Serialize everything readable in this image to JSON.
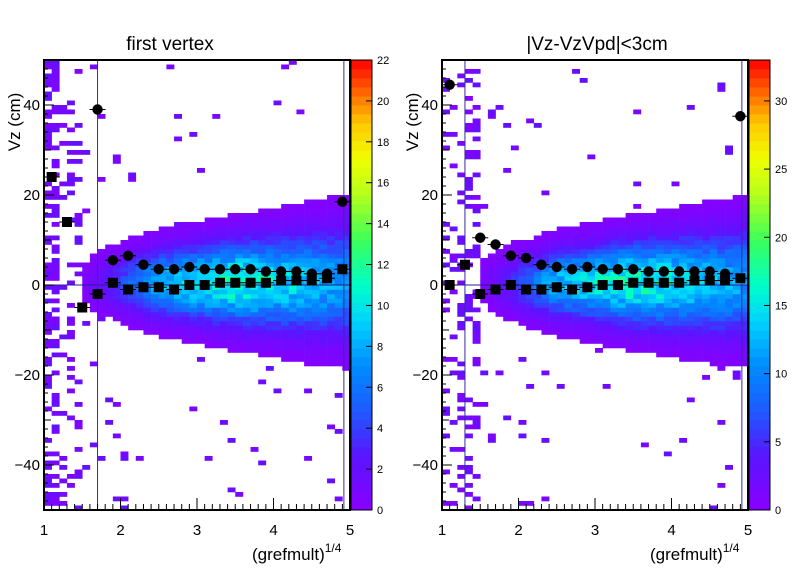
{
  "chart_data": [
    {
      "type": "heatmap",
      "title": "first vertex",
      "xlabel": "(grefmult)",
      "xlabel_sup": "1/4",
      "ylabel": "Vz (cm)",
      "xlim": [
        1,
        5
      ],
      "ylim": [
        -50,
        50
      ],
      "x_ticks": [
        "1",
        "2",
        "3",
        "4",
        "5"
      ],
      "y_ticks": [
        "−40",
        "−20",
        "0",
        "20",
        "40"
      ],
      "colorbar": {
        "min": 0,
        "max": 22,
        "ticks": [
          "0",
          "2",
          "4",
          "6",
          "8",
          "10",
          "12",
          "14",
          "16",
          "18",
          "20",
          "22"
        ]
      },
      "series": [
        {
          "name": "",
          "marker": "circle",
          "points": [
            [
              1.7,
              39
            ],
            [
              1.9,
              5.5
            ],
            [
              2.1,
              6.5
            ],
            [
              2.3,
              4.5
            ],
            [
              2.5,
              3.5
            ],
            [
              2.7,
              3.5
            ],
            [
              2.9,
              4
            ],
            [
              3.1,
              3.5
            ],
            [
              3.3,
              3.5
            ],
            [
              3.5,
              3.5
            ],
            [
              3.7,
              3.5
            ],
            [
              3.9,
              3
            ],
            [
              4.1,
              3
            ],
            [
              4.3,
              3
            ],
            [
              4.5,
              2.5
            ],
            [
              4.7,
              2.5
            ],
            [
              4.9,
              18.5
            ]
          ]
        },
        {
          "name": "",
          "marker": "square",
          "points": [
            [
              1.1,
              24
            ],
            [
              1.3,
              14
            ],
            [
              1.5,
              -5
            ],
            [
              1.7,
              -2
            ],
            [
              1.9,
              0.5
            ],
            [
              2.1,
              -1
            ],
            [
              2.3,
              -0.5
            ],
            [
              2.5,
              -0.5
            ],
            [
              2.7,
              -1
            ],
            [
              2.9,
              0
            ],
            [
              3.1,
              0
            ],
            [
              3.3,
              0.5
            ],
            [
              3.5,
              0.5
            ],
            [
              3.7,
              0.5
            ],
            [
              3.9,
              0.5
            ],
            [
              4.1,
              1
            ],
            [
              4.3,
              1
            ],
            [
              4.5,
              1
            ],
            [
              4.7,
              1.5
            ],
            [
              4.9,
              3.5
            ]
          ]
        }
      ],
      "vertical_lines_x": [
        1.7,
        4.92
      ]
    },
    {
      "type": "heatmap",
      "title": "|Vz-VzVpd|<3cm",
      "xlabel": "(grefmult)",
      "xlabel_sup": "1/4",
      "ylabel": "Vz (cm)",
      "xlim": [
        1,
        5
      ],
      "ylim": [
        -50,
        50
      ],
      "x_ticks": [
        "1",
        "2",
        "3",
        "4",
        "5"
      ],
      "y_ticks": [
        "−40",
        "−20",
        "0",
        "20",
        "40"
      ],
      "colorbar": {
        "min": 0,
        "max": 33,
        "ticks": [
          "0",
          "5",
          "10",
          "15",
          "20",
          "25",
          "30"
        ]
      },
      "series": [
        {
          "name": "",
          "marker": "circle",
          "points": [
            [
              1.1,
              44.5
            ],
            [
              1.5,
              10.5
            ],
            [
              1.7,
              9
            ],
            [
              1.9,
              6.5
            ],
            [
              2.1,
              6
            ],
            [
              2.3,
              4.5
            ],
            [
              2.5,
              4
            ],
            [
              2.7,
              3.5
            ],
            [
              2.9,
              4
            ],
            [
              3.1,
              3.5
            ],
            [
              3.3,
              3.5
            ],
            [
              3.5,
              3.5
            ],
            [
              3.7,
              3
            ],
            [
              3.9,
              3
            ],
            [
              4.1,
              3
            ],
            [
              4.3,
              3
            ],
            [
              4.5,
              3
            ],
            [
              4.7,
              2.5
            ],
            [
              4.9,
              37.5
            ]
          ]
        },
        {
          "name": "",
          "marker": "square",
          "points": [
            [
              1.1,
              0
            ],
            [
              1.3,
              4.5
            ],
            [
              1.5,
              -2
            ],
            [
              1.7,
              -1
            ],
            [
              1.9,
              0
            ],
            [
              2.1,
              -1
            ],
            [
              2.3,
              -1
            ],
            [
              2.5,
              -0.5
            ],
            [
              2.7,
              -1
            ],
            [
              2.9,
              -0.5
            ],
            [
              3.1,
              0
            ],
            [
              3.3,
              0
            ],
            [
              3.5,
              0.5
            ],
            [
              3.7,
              0.5
            ],
            [
              3.9,
              0.5
            ],
            [
              4.1,
              0.5
            ],
            [
              4.3,
              1
            ],
            [
              4.5,
              1
            ],
            [
              4.7,
              1
            ],
            [
              4.9,
              1.5
            ]
          ]
        }
      ],
      "vertical_lines_x": [
        1.3,
        4.92
      ]
    }
  ]
}
